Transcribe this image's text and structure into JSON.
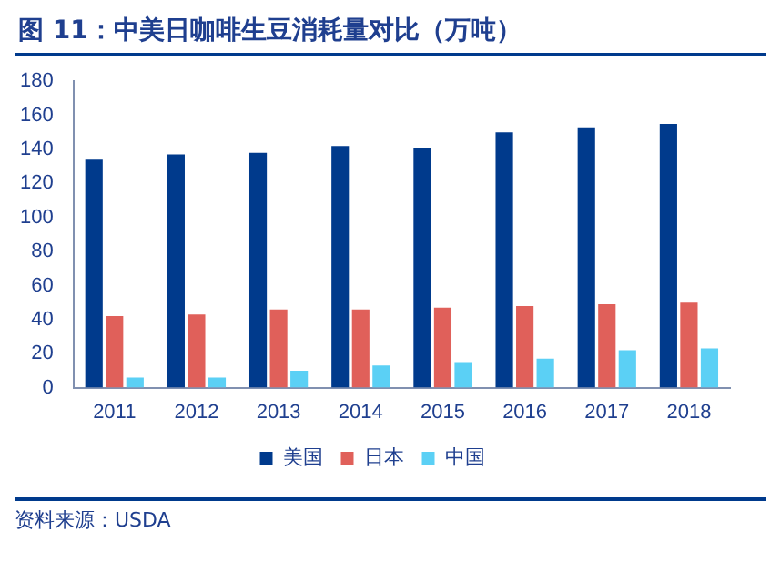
{
  "chart_data": {
    "type": "bar",
    "title": "图 11：中美日咖啡生豆消耗量对比（万吨）",
    "categories": [
      "2011",
      "2012",
      "2013",
      "2014",
      "2015",
      "2016",
      "2017",
      "2018"
    ],
    "series": [
      {
        "name": "美国",
        "color": "#003a8c",
        "values": [
          134,
          137,
          138,
          142,
          141,
          150,
          153,
          155
        ]
      },
      {
        "name": "日本",
        "color": "#e0605a",
        "values": [
          42,
          43,
          46,
          46,
          47,
          48,
          49,
          50
        ]
      },
      {
        "name": "中国",
        "color": "#5bd0f5",
        "values": [
          6,
          6,
          10,
          13,
          15,
          17,
          22,
          23
        ]
      }
    ],
    "ylim": [
      0,
      180
    ],
    "yticks": [
      0,
      20,
      40,
      60,
      80,
      100,
      120,
      140,
      160,
      180
    ],
    "grid": false,
    "legend": "bottom",
    "annotations": [
      "资料来源：USDA"
    ]
  }
}
